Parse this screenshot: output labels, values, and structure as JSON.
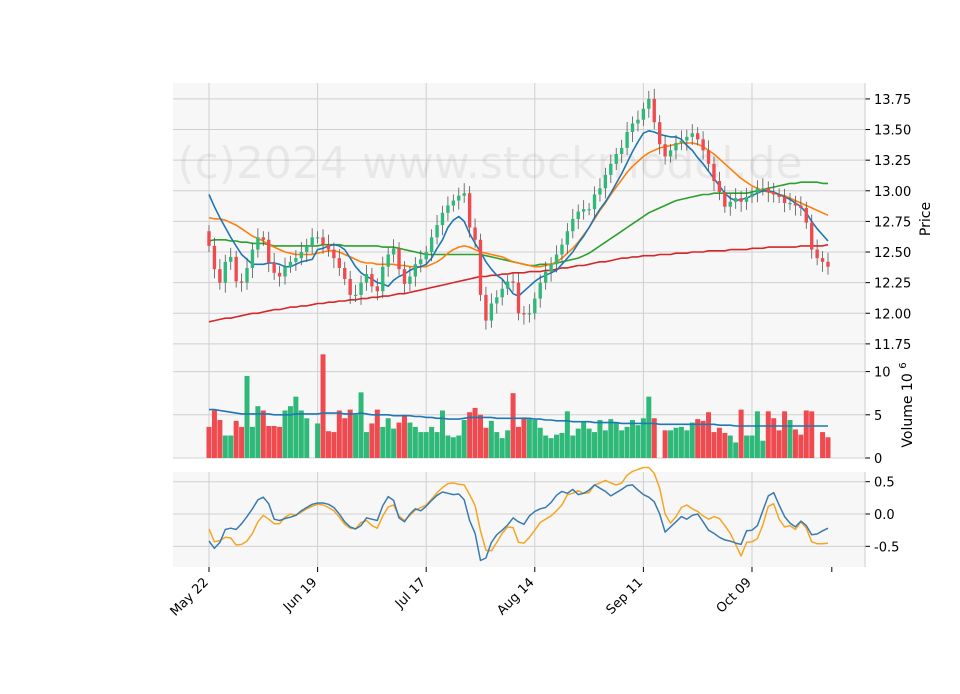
{
  "watermark": "(c)2024 www.stockmodel.de",
  "colors": {
    "up": "#2fb979",
    "down": "#ef4a4f",
    "ma_fast": "#1f77b4",
    "ma_mid": "#ff7f0e",
    "ma_slow": "#2ca02c",
    "ma_long": "#d62728",
    "volume_ma": "#1f77b4",
    "osc_blue": "#3a7bb0",
    "osc_orange": "#f5a623",
    "panel_bg": "#f7f7f7",
    "grid": "#d0d0d0"
  },
  "chart_data": [
    {
      "panel": "price",
      "type": "candlestick",
      "ylabel": "Price",
      "ylim": [
        11.7,
        13.88
      ],
      "yticks": [
        "11.75",
        "12.00",
        "12.25",
        "12.50",
        "12.75",
        "13.00",
        "13.25",
        "13.50",
        "13.75"
      ],
      "xticks": [
        {
          "label": "May 22",
          "index": 0
        },
        {
          "label": "Jun 19",
          "index": 20
        },
        {
          "label": "Jul 17",
          "index": 40
        },
        {
          "label": "Aug 14",
          "index": 60
        },
        {
          "label": "Sep 11",
          "index": 80
        },
        {
          "label": "Oct 09",
          "index": 100
        }
      ],
      "close": [
        12.55,
        12.36,
        12.25,
        12.42,
        12.46,
        12.26,
        12.25,
        12.37,
        12.52,
        12.62,
        12.6,
        12.41,
        12.33,
        12.3,
        12.38,
        12.42,
        12.45,
        12.5,
        12.55,
        12.62,
        12.62,
        12.56,
        12.52,
        12.45,
        12.37,
        12.28,
        12.15,
        12.15,
        12.25,
        12.32,
        12.22,
        12.18,
        12.38,
        12.48,
        12.53,
        12.36,
        12.24,
        12.3,
        12.4,
        12.44,
        12.5,
        12.62,
        12.72,
        12.82,
        12.88,
        12.92,
        12.96,
        12.98,
        12.7,
        12.6,
        12.15,
        11.94,
        12.08,
        12.13,
        12.2,
        12.26,
        12.25,
        12.0,
        11.99,
        12.0,
        12.12,
        12.25,
        12.34,
        12.4,
        12.48,
        12.56,
        12.67,
        12.77,
        12.83,
        12.85,
        12.85,
        12.97,
        13.02,
        13.13,
        13.22,
        13.3,
        13.35,
        13.48,
        13.55,
        13.58,
        13.67,
        13.75,
        13.56,
        13.38,
        13.28,
        13.33,
        13.39,
        13.41,
        13.44,
        13.47,
        13.42,
        13.33,
        13.22,
        13.08,
        12.99,
        12.87,
        12.91,
        12.94,
        12.91,
        12.95,
        12.98,
        13.02,
        13.02,
        12.99,
        12.97,
        12.95,
        12.9,
        12.9,
        12.88,
        12.86,
        12.74,
        12.52,
        12.45,
        12.42,
        12.38
      ],
      "ma_fast": [
        12.97,
        12.87,
        12.78,
        12.7,
        12.62,
        12.55,
        12.48,
        12.44,
        12.4,
        12.4,
        12.4,
        12.41,
        12.41,
        12.4,
        12.38,
        12.38,
        12.4,
        12.42,
        12.43,
        12.44,
        12.52,
        12.53,
        12.55,
        12.56,
        12.55,
        12.52,
        12.45,
        12.38,
        12.33,
        12.3,
        12.28,
        12.25,
        12.24,
        12.22,
        12.27,
        12.3,
        12.32,
        12.35,
        12.37,
        12.38,
        12.4,
        12.45,
        12.53,
        12.6,
        12.7,
        12.76,
        12.79,
        12.75,
        12.65,
        12.57,
        12.5,
        12.42,
        12.36,
        12.31,
        12.28,
        12.22,
        12.16,
        12.14,
        12.18,
        12.22,
        12.26,
        12.29,
        12.31,
        12.33,
        12.35,
        12.4,
        12.45,
        12.5,
        12.57,
        12.63,
        12.7,
        12.78,
        12.85,
        12.91,
        12.98,
        13.06,
        13.14,
        13.23,
        13.32,
        13.4,
        13.47,
        13.49,
        13.48,
        13.46,
        13.45,
        13.44,
        13.44,
        13.42,
        13.37,
        13.33,
        13.27,
        13.22,
        13.16,
        13.1,
        13.04,
        12.98,
        12.94,
        12.92,
        12.93,
        12.94,
        12.96,
        12.98,
        13.0,
        13.0,
        12.99,
        12.97,
        12.95,
        12.93,
        12.9,
        12.87,
        12.82,
        12.75,
        12.69,
        12.64,
        12.59
      ],
      "ma_mid": [
        12.78,
        12.77,
        12.77,
        12.76,
        12.74,
        12.72,
        12.69,
        12.66,
        12.63,
        12.61,
        12.59,
        12.56,
        12.54,
        12.52,
        12.5,
        12.49,
        12.48,
        12.48,
        12.48,
        12.48,
        12.49,
        12.5,
        12.51,
        12.51,
        12.5,
        12.48,
        12.46,
        12.44,
        12.42,
        12.41,
        12.41,
        12.4,
        12.4,
        12.4,
        12.4,
        12.39,
        12.39,
        12.38,
        12.38,
        12.38,
        12.38,
        12.4,
        12.42,
        12.45,
        12.49,
        12.52,
        12.54,
        12.55,
        12.54,
        12.52,
        12.5,
        12.49,
        12.48,
        12.47,
        12.46,
        12.44,
        12.42,
        12.41,
        12.4,
        12.39,
        12.38,
        12.38,
        12.39,
        12.4,
        12.42,
        12.45,
        12.49,
        12.53,
        12.58,
        12.64,
        12.7,
        12.77,
        12.84,
        12.9,
        12.97,
        13.03,
        13.09,
        13.15,
        13.2,
        13.24,
        13.28,
        13.31,
        13.33,
        13.35,
        13.36,
        13.37,
        13.38,
        13.39,
        13.39,
        13.39,
        13.38,
        13.36,
        13.33,
        13.3,
        13.26,
        13.22,
        13.18,
        13.14,
        13.1,
        13.07,
        13.04,
        13.02,
        13.0,
        12.99,
        12.98,
        12.97,
        12.96,
        12.94,
        12.92,
        12.9,
        12.88,
        12.86,
        12.84,
        12.82,
        12.8
      ],
      "ma_slow": [
        12.59,
        12.6,
        12.6,
        12.6,
        12.59,
        12.59,
        12.58,
        12.58,
        12.57,
        12.57,
        12.57,
        12.56,
        12.55,
        12.55,
        12.55,
        12.55,
        12.55,
        12.55,
        12.55,
        12.55,
        12.55,
        12.56,
        12.56,
        12.56,
        12.56,
        12.55,
        12.55,
        12.55,
        12.55,
        12.55,
        12.55,
        12.55,
        12.54,
        12.54,
        12.54,
        12.53,
        12.52,
        12.51,
        12.5,
        12.49,
        12.48,
        12.48,
        12.48,
        12.48,
        12.48,
        12.48,
        12.48,
        12.48,
        12.48,
        12.48,
        12.48,
        12.47,
        12.46,
        12.45,
        12.44,
        12.43,
        12.42,
        12.41,
        12.4,
        12.39,
        12.39,
        12.4,
        12.4,
        12.4,
        12.41,
        12.42,
        12.43,
        12.44,
        12.45,
        12.47,
        12.49,
        12.52,
        12.55,
        12.58,
        12.61,
        12.64,
        12.67,
        12.7,
        12.73,
        12.76,
        12.79,
        12.82,
        12.84,
        12.86,
        12.88,
        12.9,
        12.92,
        12.93,
        12.94,
        12.95,
        12.96,
        12.97,
        12.97,
        12.98,
        12.98,
        12.98,
        12.98,
        12.98,
        12.98,
        12.98,
        12.99,
        13.0,
        13.01,
        13.02,
        13.03,
        13.04,
        13.05,
        13.06,
        13.06,
        13.07,
        13.07,
        13.07,
        13.07,
        13.06,
        13.06
      ],
      "ma_long": [
        11.93,
        11.94,
        11.95,
        11.96,
        11.96,
        11.97,
        11.98,
        11.99,
        12.0,
        12.0,
        12.01,
        12.02,
        12.03,
        12.03,
        12.04,
        12.05,
        12.05,
        12.06,
        12.06,
        12.07,
        12.08,
        12.08,
        12.09,
        12.09,
        12.1,
        12.1,
        12.11,
        12.11,
        12.12,
        12.12,
        12.13,
        12.13,
        12.14,
        12.14,
        12.15,
        12.16,
        12.16,
        12.17,
        12.18,
        12.19,
        12.2,
        12.21,
        12.22,
        12.23,
        12.24,
        12.25,
        12.26,
        12.27,
        12.28,
        12.29,
        12.3,
        12.3,
        12.31,
        12.31,
        12.32,
        12.32,
        12.33,
        12.33,
        12.33,
        12.34,
        12.34,
        12.34,
        12.35,
        12.35,
        12.36,
        12.37,
        12.37,
        12.38,
        12.39,
        12.39,
        12.4,
        12.41,
        12.42,
        12.42,
        12.43,
        12.44,
        12.45,
        12.45,
        12.46,
        12.46,
        12.47,
        12.47,
        12.47,
        12.48,
        12.48,
        12.48,
        12.49,
        12.49,
        12.49,
        12.5,
        12.5,
        12.5,
        12.51,
        12.51,
        12.51,
        12.51,
        12.52,
        12.52,
        12.52,
        12.52,
        12.53,
        12.53,
        12.53,
        12.54,
        12.54,
        12.54,
        12.54,
        12.54,
        12.54,
        12.55,
        12.55,
        12.55,
        12.55,
        12.55,
        12.56
      ]
    },
    {
      "panel": "volume",
      "type": "bar",
      "ylabel": "Volume",
      "unit_label": "10",
      "unit_exponent": "6",
      "ylim": [
        0,
        12.5
      ],
      "yticks": [
        "0",
        "5",
        "10"
      ],
      "volume": [
        3.6,
        5.5,
        4.4,
        2.6,
        2.6,
        4.3,
        3.6,
        9.5,
        3.6,
        6.0,
        5.5,
        3.7,
        3.7,
        3.6,
        5.5,
        6.0,
        7.1,
        5.5,
        4.6,
        0.0,
        4.0,
        12.0,
        3.1,
        3.0,
        5.5,
        4.6,
        5.6,
        5.0,
        7.6,
        3.0,
        4.0,
        5.6,
        3.6,
        4.6,
        3.4,
        4.1,
        5.0,
        4.1,
        3.6,
        3.0,
        3.0,
        3.6,
        3.0,
        5.5,
        2.6,
        2.4,
        2.6,
        4.4,
        5.3,
        5.8,
        5.0,
        3.5,
        4.3,
        3.0,
        2.3,
        3.2,
        7.5,
        3.6,
        4.7,
        4.5,
        4.4,
        3.5,
        2.6,
        2.3,
        2.7,
        2.9,
        5.4,
        2.6,
        3.4,
        4.2,
        3.4,
        3.0,
        4.4,
        3.2,
        4.5,
        4.1,
        3.2,
        3.6,
        4.4,
        3.8,
        4.6,
        7.1,
        4.6,
        0.0,
        3.2,
        3.2,
        3.5,
        3.6,
        3.2,
        4.1,
        4.5,
        4.3,
        5.3,
        3.0,
        3.5,
        2.9,
        2.6,
        1.8,
        5.6,
        2.6,
        2.6,
        5.4,
        2.0,
        5.4,
        4.6,
        3.2,
        5.4,
        4.4,
        3.3,
        2.7,
        5.5,
        5.4,
        0.0,
        3.0,
        2.4
      ],
      "volume_ma": [
        5.6,
        5.6,
        5.5,
        5.4,
        5.3,
        5.2,
        5.1,
        5.1,
        5.1,
        5.1,
        5.1,
        5.1,
        5.0,
        5.0,
        5.0,
        5.0,
        5.1,
        5.1,
        5.1,
        5.1,
        5.1,
        5.2,
        5.2,
        5.2,
        5.2,
        5.1,
        5.1,
        5.1,
        5.2,
        5.1,
        5.0,
        5.0,
        5.0,
        5.0,
        4.9,
        4.9,
        4.9,
        4.9,
        4.8,
        4.8,
        4.7,
        4.7,
        4.6,
        4.6,
        4.5,
        4.5,
        4.5,
        4.6,
        4.7,
        4.7,
        4.7,
        4.7,
        4.7,
        4.6,
        4.6,
        4.6,
        4.6,
        4.6,
        4.6,
        4.6,
        4.5,
        4.5,
        4.4,
        4.4,
        4.3,
        4.3,
        4.3,
        4.2,
        4.2,
        4.2,
        4.2,
        4.1,
        4.1,
        4.1,
        4.1,
        4.1,
        4.0,
        4.0,
        4.0,
        4.0,
        4.0,
        4.0,
        4.0,
        3.9,
        3.9,
        3.9,
        3.9,
        3.9,
        3.9,
        3.9,
        3.9,
        3.9,
        3.9,
        3.9,
        3.8,
        3.8,
        3.8,
        3.7,
        3.7,
        3.7,
        3.7,
        3.7,
        3.7,
        3.7,
        3.7,
        3.7,
        3.7,
        3.7,
        3.7,
        3.7,
        3.7,
        3.7,
        3.7,
        3.7,
        3.7
      ]
    },
    {
      "panel": "oscillator",
      "type": "line",
      "ylim": [
        -0.82,
        0.65
      ],
      "yticks": [
        "-0.5",
        "0.0",
        "0.5"
      ],
      "series": [
        {
          "color": "orange",
          "values": [
            -0.23,
            -0.43,
            -0.41,
            -0.36,
            -0.37,
            -0.48,
            -0.47,
            -0.42,
            -0.3,
            -0.12,
            -0.02,
            -0.08,
            -0.15,
            -0.15,
            -0.05,
            0.0,
            -0.02,
            0.03,
            0.08,
            0.12,
            0.15,
            0.14,
            0.1,
            0.05,
            -0.05,
            -0.16,
            -0.22,
            -0.23,
            -0.13,
            -0.1,
            -0.18,
            -0.22,
            -0.03,
            0.11,
            0.14,
            -0.03,
            -0.1,
            -0.02,
            0.06,
            0.1,
            0.14,
            0.23,
            0.33,
            0.41,
            0.47,
            0.48,
            0.46,
            0.45,
            0.3,
            0.13,
            -0.26,
            -0.56,
            -0.57,
            -0.44,
            -0.3,
            -0.2,
            -0.21,
            -0.44,
            -0.45,
            -0.36,
            -0.25,
            -0.13,
            -0.08,
            -0.03,
            0.05,
            0.14,
            0.3,
            0.32,
            0.36,
            0.32,
            0.33,
            0.45,
            0.48,
            0.52,
            0.48,
            0.45,
            0.48,
            0.6,
            0.66,
            0.69,
            0.72,
            0.72,
            0.63,
            0.4,
            0.0,
            -0.14,
            -0.04,
            0.1,
            0.14,
            0.08,
            0.04,
            -0.03,
            -0.08,
            -0.04,
            -0.07,
            -0.18,
            -0.3,
            -0.47,
            -0.65,
            -0.44,
            -0.43,
            -0.38,
            -0.17,
            0.12,
            0.16,
            -0.08,
            -0.2,
            -0.18,
            -0.24,
            -0.12,
            -0.22,
            -0.43,
            -0.46,
            -0.46,
            -0.45
          ]
        },
        {
          "color": "blue",
          "values": [
            -0.42,
            -0.53,
            -0.44,
            -0.24,
            -0.22,
            -0.24,
            -0.15,
            -0.04,
            0.08,
            0.22,
            0.26,
            0.16,
            -0.08,
            -0.1,
            -0.07,
            -0.05,
            -0.02,
            0.05,
            0.1,
            0.15,
            0.17,
            0.17,
            0.15,
            0.1,
            0.0,
            -0.12,
            -0.2,
            -0.23,
            -0.18,
            -0.06,
            -0.08,
            -0.1,
            0.13,
            0.27,
            0.21,
            -0.06,
            -0.12,
            0.0,
            0.08,
            0.05,
            0.12,
            0.21,
            0.29,
            0.34,
            0.32,
            0.3,
            0.31,
            0.22,
            -0.1,
            -0.3,
            -0.72,
            -0.68,
            -0.44,
            -0.32,
            -0.25,
            -0.17,
            -0.06,
            -0.12,
            -0.16,
            -0.03,
            0.04,
            0.08,
            0.1,
            0.18,
            0.29,
            0.35,
            0.32,
            0.38,
            0.3,
            0.32,
            0.37,
            0.45,
            0.4,
            0.35,
            0.28,
            0.33,
            0.38,
            0.44,
            0.45,
            0.37,
            0.3,
            0.26,
            0.19,
            0.0,
            -0.28,
            -0.2,
            -0.12,
            -0.04,
            -0.08,
            -0.02,
            0.0,
            -0.12,
            -0.25,
            -0.3,
            -0.36,
            -0.4,
            -0.42,
            -0.45,
            -0.47,
            -0.26,
            -0.25,
            -0.18,
            0.05,
            0.28,
            0.33,
            0.14,
            -0.04,
            -0.14,
            -0.2,
            -0.11,
            -0.18,
            -0.32,
            -0.31,
            -0.26,
            -0.22
          ]
        }
      ]
    }
  ]
}
